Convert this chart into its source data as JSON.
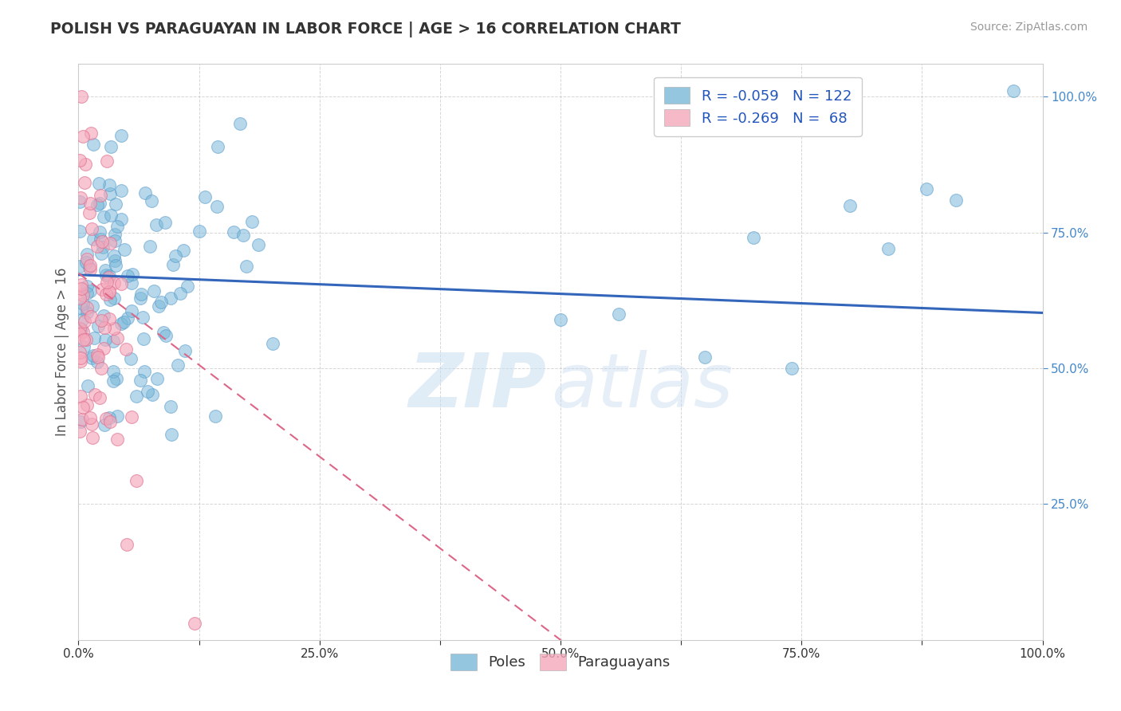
{
  "title": "POLISH VS PARAGUAYAN IN LABOR FORCE | AGE > 16 CORRELATION CHART",
  "source_text": "Source: ZipAtlas.com",
  "ylabel": "In Labor Force | Age > 16",
  "xlim": [
    0.0,
    1.0
  ],
  "ylim": [
    0.0,
    1.06
  ],
  "x_ticks": [
    0.0,
    0.125,
    0.25,
    0.375,
    0.5,
    0.625,
    0.75,
    0.875,
    1.0
  ],
  "x_tick_labels": [
    "0.0%",
    "",
    "25.0%",
    "",
    "50.0%",
    "",
    "75.0%",
    "",
    "100.0%"
  ],
  "y_ticks": [
    0.25,
    0.5,
    0.75,
    1.0
  ],
  "y_tick_labels": [
    "25.0%",
    "50.0%",
    "75.0%",
    "100.0%"
  ],
  "legend_label_poles": "R = -0.059   N = 122",
  "legend_label_paraguayans": "R = -0.269   N =  68",
  "poles_color": "#7ab8d9",
  "poles_edge_color": "#5599cc",
  "paraguayans_color": "#f4a8bb",
  "paraguayans_edge_color": "#e07090",
  "trend_poles_color": "#3366bb",
  "trend_paraguayans_color": "#dd6688",
  "watermark_text": "ZIPAtlas",
  "watermark_color": "#c8ddf0",
  "background_color": "#ffffff",
  "grid_color": "#bbbbbb",
  "poles_R": -0.059,
  "poles_N": 122,
  "paraguayans_R": -0.269,
  "paraguayans_N": 68,
  "title_color": "#333333",
  "source_color": "#999999",
  "ylabel_color": "#555555",
  "ytick_color": "#4488cc",
  "xtick_color": "#333333"
}
